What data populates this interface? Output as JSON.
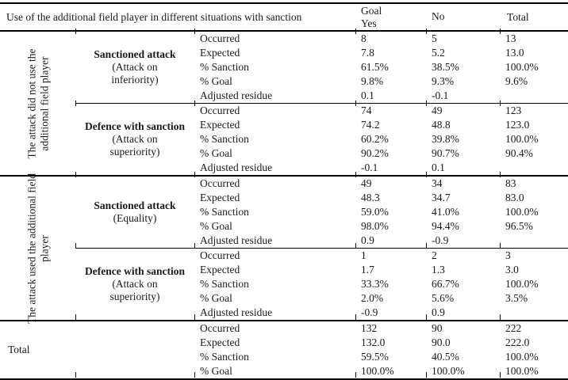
{
  "header": {
    "title": "Use of the additional field player in different situations with sanction",
    "goal": "Goal",
    "yes": "Yes",
    "no": "No",
    "total": "Total"
  },
  "row_labels": [
    "Occurred",
    "Expected",
    "% Sanction",
    "% Goal",
    "Adjusted residue"
  ],
  "groups": [
    {
      "vertical_label": "The attack did not use the additional field player",
      "blocks": [
        {
          "name": "Sanctioned attack",
          "context": "(Attack on inferiority)",
          "rows": [
            [
              "8",
              "5",
              "13"
            ],
            [
              "7.8",
              "5.2",
              "13.0"
            ],
            [
              "61.5%",
              "38.5%",
              "100.0%"
            ],
            [
              "9.8%",
              "9.3%",
              "9.6%"
            ],
            [
              "0.1",
              "-0.1",
              ""
            ]
          ]
        },
        {
          "name": "Defence with sanction",
          "context": "(Attack on superiority)",
          "rows": [
            [
              "74",
              "49",
              "123"
            ],
            [
              "74.2",
              "48.8",
              "123.0"
            ],
            [
              "60.2%",
              "39.8%",
              "100.0%"
            ],
            [
              "90.2%",
              "90.7%",
              "90.4%"
            ],
            [
              "-0.1",
              "0.1",
              ""
            ]
          ]
        }
      ]
    },
    {
      "vertical_label": "The attack used the additional field player",
      "blocks": [
        {
          "name": "Sanctioned attack",
          "context": "(Equality)",
          "rows": [
            [
              "49",
              "34",
              "83"
            ],
            [
              "48.3",
              "34.7",
              "83.0"
            ],
            [
              "59.0%",
              "41.0%",
              "100.0%"
            ],
            [
              "98.0%",
              "94.4%",
              "96.5%"
            ],
            [
              "0.9",
              "-0.9",
              ""
            ]
          ]
        },
        {
          "name": "Defence with sanction",
          "context": "(Attack on superiority)",
          "rows": [
            [
              "1",
              "2",
              "3"
            ],
            [
              "1.7",
              "1.3",
              "3.0"
            ],
            [
              "33.3%",
              "66.7%",
              "100.0%"
            ],
            [
              "2.0%",
              "5.6%",
              "3.5%"
            ],
            [
              "-0.9",
              "0.9",
              ""
            ]
          ]
        }
      ]
    }
  ],
  "total": {
    "label": "Total",
    "rows": [
      [
        "132",
        "90",
        "222"
      ],
      [
        "132.0",
        "90.0",
        "222.0"
      ],
      [
        "59.5%",
        "40.5%",
        "100.0%"
      ],
      [
        "100.0%",
        "100.0%",
        "100.0%"
      ]
    ]
  },
  "colors": {
    "rule": "#000000",
    "text": "#1a1a1a",
    "background": "#ffffff"
  }
}
